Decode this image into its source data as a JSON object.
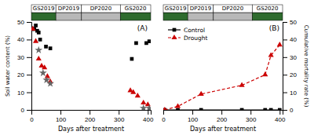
{
  "chart_data": [
    {
      "type": "scatter",
      "xlabel": "Days after treatment",
      "ylabel": "Soil water content (%)",
      "annotations": [
        "(A)"
      ],
      "xlim": [
        0,
        410
      ],
      "xticks": [
        0,
        100,
        200,
        300,
        400
      ],
      "ylim": [
        0,
        50
      ],
      "yticks": [
        0,
        10,
        20,
        30,
        40,
        50
      ],
      "seasons": [
        {
          "label": "GS2019",
          "start": 0,
          "end": 84.05,
          "color": "#2e6b2e"
        },
        {
          "label": "DP2019",
          "start": 84.05,
          "end": 172.2,
          "color": "#b8b8b8"
        },
        {
          "label": "DP2020",
          "start": 172.2,
          "end": 305.45,
          "color": "#b8b8b8"
        },
        {
          "label": "GS2020",
          "start": 305.45,
          "end": 410,
          "color": "#2e6b2e"
        }
      ],
      "series": [
        {
          "color": "#000000",
          "marker": "square",
          "x": [
            5,
            10,
            15,
            20,
            25,
            30,
            50,
            65,
            345,
            360,
            395,
            405
          ],
          "values": [
            46,
            46,
            48,
            45,
            44,
            40,
            36,
            35,
            29,
            38,
            38,
            39
          ]
        },
        {
          "color": "#cc0000",
          "marker": "triangle",
          "x": [
            5,
            15,
            25,
            35,
            45,
            55,
            65,
            340,
            350,
            365,
            385,
            400
          ],
          "values": [
            46,
            39,
            29,
            25,
            24,
            19,
            16,
            11,
            10,
            8,
            4,
            3
          ]
        },
        {
          "color": "#666666",
          "marker": "star",
          "x": [
            25,
            40,
            52,
            65,
            385,
            405
          ],
          "values": [
            34,
            21,
            17,
            15,
            1,
            1
          ]
        }
      ]
    },
    {
      "type": "line",
      "xlabel": "Days after treatment",
      "ylabel": "Cumulative mortality rate (%)",
      "annotations": [
        "(B)"
      ],
      "legend": "upper left",
      "xlim": [
        0,
        410
      ],
      "xticks": [
        0,
        100,
        200,
        300,
        400
      ],
      "ylim": [
        0,
        50
      ],
      "yticks": [
        0,
        10,
        20,
        30,
        40,
        50
      ],
      "seasons": [
        {
          "label": "GS2019",
          "start": 0,
          "end": 84.05,
          "color": "#2e6b2e"
        },
        {
          "label": "DP2019",
          "start": 84.05,
          "end": 172.2,
          "color": "#b8b8b8"
        },
        {
          "label": "DP2020",
          "start": 172.2,
          "end": 305.45,
          "color": "#b8b8b8"
        },
        {
          "label": "GS2020",
          "start": 305.45,
          "end": 410,
          "color": "#2e6b2e"
        }
      ],
      "series": [
        {
          "name": "Control",
          "color": "#000000",
          "marker": "square",
          "line_style": "solid",
          "x": [
            5,
            50,
            130,
            270,
            350,
            370,
            400
          ],
          "values": [
            0,
            0,
            0,
            0,
            0,
            0,
            0
          ]
        },
        {
          "name": "Drought",
          "color": "#cc0000",
          "marker": "triangle",
          "line_style": "dashed",
          "x": [
            5,
            50,
            130,
            270,
            350,
            370,
            400
          ],
          "values": [
            0,
            2,
            9,
            14,
            20,
            31,
            37
          ]
        }
      ]
    }
  ]
}
